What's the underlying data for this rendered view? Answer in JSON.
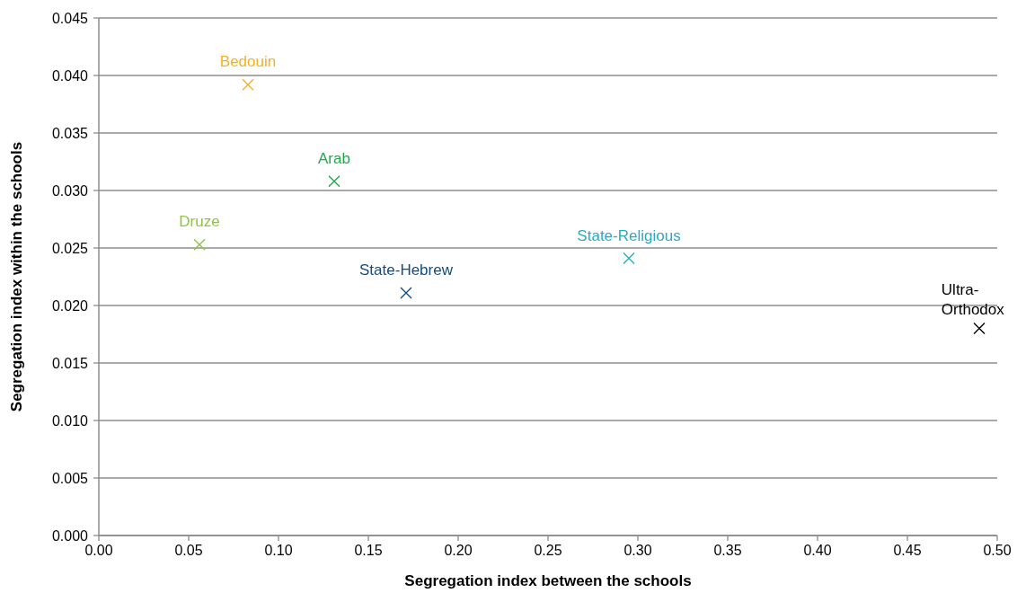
{
  "chart_data": {
    "type": "scatter",
    "xlabel": "Segregation index between the schools",
    "ylabel": "Segregation index within the schools",
    "series": [
      {
        "name": "Bedouin",
        "color": "#f5b120",
        "x": [
          0.083
        ],
        "values": [
          0.0392
        ]
      },
      {
        "name": "Arab",
        "color": "#22a84a",
        "x": [
          0.131
        ],
        "values": [
          0.0308
        ]
      },
      {
        "name": "Druze",
        "color": "#8cc63f",
        "x": [
          0.056
        ],
        "values": [
          0.0253
        ]
      },
      {
        "name": "State-Hebrew",
        "color": "#0f4c81",
        "x": [
          0.171
        ],
        "values": [
          0.0211
        ]
      },
      {
        "name": "State-Religious",
        "color": "#2aa9c2",
        "x": [
          0.295
        ],
        "values": [
          0.0241
        ]
      },
      {
        "name": "Ultra-Orthodox",
        "color": "#000000",
        "x": [
          0.49
        ],
        "values": [
          0.018
        ]
      }
    ],
    "xlim": [
      0,
      0.5
    ],
    "xticks": [
      {
        "value": 0,
        "label": "0.00"
      },
      {
        "value": 0.05,
        "label": "0.05"
      },
      {
        "value": 0.1,
        "label": "0.10"
      },
      {
        "value": 0.15,
        "label": "0.15"
      },
      {
        "value": 0.2,
        "label": "0.20"
      },
      {
        "value": 0.25,
        "label": "0.25"
      },
      {
        "value": 0.3,
        "label": "0.30"
      },
      {
        "value": 0.35,
        "label": "0.35"
      },
      {
        "value": 0.4,
        "label": "0.40"
      },
      {
        "value": 0.45,
        "label": "0.45"
      },
      {
        "value": 0.5,
        "label": "0.50"
      }
    ],
    "ylim": [
      0,
      0.045
    ],
    "yticks": [
      {
        "value": 0,
        "label": "0.000"
      },
      {
        "value": 0.005,
        "label": "0.005"
      },
      {
        "value": 0.01,
        "label": "0.010"
      },
      {
        "value": 0.015,
        "label": "0.015"
      },
      {
        "value": 0.02,
        "label": "0.020"
      },
      {
        "value": 0.025,
        "label": "0.025"
      },
      {
        "value": 0.03,
        "label": "0.030"
      },
      {
        "value": 0.035,
        "label": "0.035"
      },
      {
        "value": 0.04,
        "label": "0.040"
      },
      {
        "value": 0.045,
        "label": "0.045"
      }
    ],
    "grid": "y",
    "marker": "cross"
  }
}
